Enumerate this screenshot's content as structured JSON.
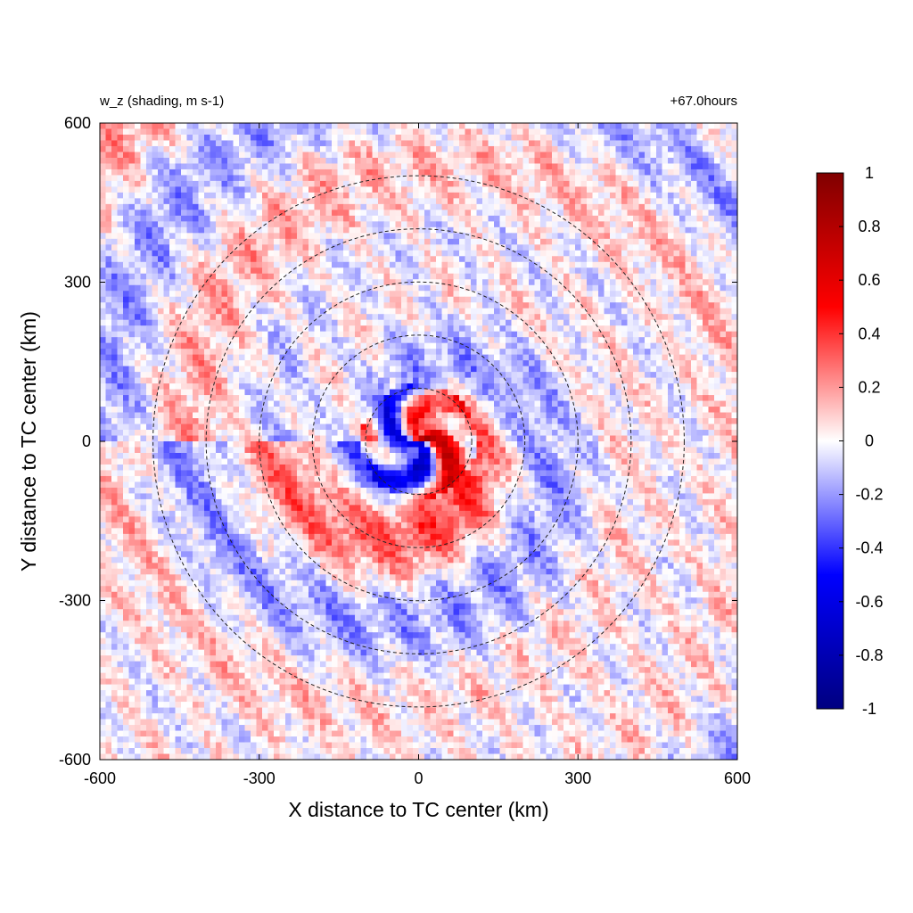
{
  "chart_data": {
    "type": "heatmap",
    "title_left": "w_z (shading, m s-1)",
    "title_right": "+67.0hours",
    "xlabel": "X distance to TC center (km)",
    "ylabel": "Y distance to TC center (km)",
    "xlim": [
      -600,
      600
    ],
    "ylim": [
      -600,
      600
    ],
    "xticks": [
      "-600",
      "-300",
      "0",
      "300",
      "600"
    ],
    "yticks": [
      "-600",
      "-300",
      "0",
      "300",
      "600"
    ],
    "xtick_values": [
      -600,
      -300,
      0,
      300,
      600
    ],
    "ytick_values": [
      -600,
      -300,
      0,
      300,
      600
    ],
    "range_rings_km": [
      100,
      200,
      300,
      400,
      500
    ],
    "colorbar": {
      "min": -1,
      "max": 1,
      "ticks": [
        "1",
        "0.8",
        "0.6",
        "0.4",
        "0.2",
        "0",
        "-0.2",
        "-0.4",
        "-0.6",
        "-0.8",
        "-1"
      ],
      "tick_values": [
        1,
        0.8,
        0.6,
        0.4,
        0.2,
        0,
        -0.2,
        -0.4,
        -0.6,
        -0.8,
        -1
      ],
      "colors": [
        "#000080",
        "#0000ff",
        "#ffffff",
        "#ff0000",
        "#800000"
      ]
    },
    "field_description": "spiral bands of vertical velocity around TC center"
  }
}
